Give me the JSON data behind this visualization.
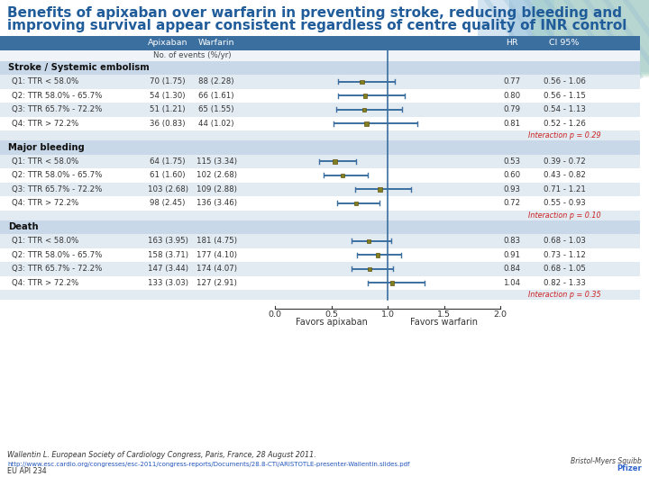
{
  "title_line1": "Benefits of apixaban over warfarin in preventing stroke, reducing bleeding and",
  "title_line2": "improving survival appear consistent regardless of centre quality of INR control",
  "title_color": "#1F5C99",
  "title_fontsize": 11,
  "bg_color": "#FFFFFF",
  "table_header_bg": "#3B6FA0",
  "table_header_color": "#FFFFFF",
  "sub_header": "No. of events (%/yr)",
  "sections": [
    {
      "name": "Stroke / Systemic embolism",
      "rows": [
        {
          "label": "Q1: TTR < 58.0%",
          "apix": "70 (1.75)",
          "warf": "88 (2.28)",
          "hr": 0.77,
          "ci_lo": 0.56,
          "ci_hi": 1.06,
          "hr_txt": "0.77",
          "ci_txt": "0.56 - 1.06"
        },
        {
          "label": "Q2: TTR 58.0% - 65.7%",
          "apix": "54 (1.30)",
          "warf": "66 (1.61)",
          "hr": 0.8,
          "ci_lo": 0.56,
          "ci_hi": 1.15,
          "hr_txt": "0.80",
          "ci_txt": "0.56 - 1.15"
        },
        {
          "label": "Q3: TTR 65.7% - 72.2%",
          "apix": "51 (1.21)",
          "warf": "65 (1.55)",
          "hr": 0.79,
          "ci_lo": 0.54,
          "ci_hi": 1.13,
          "hr_txt": "0.79",
          "ci_txt": "0.54 - 1.13"
        },
        {
          "label": "Q4: TTR > 72.2%",
          "apix": "36 (0.83)",
          "warf": "44 (1.02)",
          "hr": 0.81,
          "ci_lo": 0.52,
          "ci_hi": 1.26,
          "hr_txt": "0.81",
          "ci_txt": "0.52 - 1.26"
        }
      ],
      "interaction": "Interaction p = 0.29"
    },
    {
      "name": "Major bleeding",
      "rows": [
        {
          "label": "Q1: TTR < 58.0%",
          "apix": "64 (1.75)",
          "warf": "115 (3.34)",
          "hr": 0.53,
          "ci_lo": 0.39,
          "ci_hi": 0.72,
          "hr_txt": "0.53",
          "ci_txt": "0.39 - 0.72"
        },
        {
          "label": "Q2: TTR 58.0% - 65.7%",
          "apix": "61 (1.60)",
          "warf": "102 (2.68)",
          "hr": 0.6,
          "ci_lo": 0.43,
          "ci_hi": 0.82,
          "hr_txt": "0.60",
          "ci_txt": "0.43 - 0.82"
        },
        {
          "label": "Q3: TTR 65.7% - 72.2%",
          "apix": "103 (2.68)",
          "warf": "109 (2.88)",
          "hr": 0.93,
          "ci_lo": 0.71,
          "ci_hi": 1.21,
          "hr_txt": "0.93",
          "ci_txt": "0.71 - 1.21"
        },
        {
          "label": "Q4: TTR > 72.2%",
          "apix": "98 (2.45)",
          "warf": "136 (3.46)",
          "hr": 0.72,
          "ci_lo": 0.55,
          "ci_hi": 0.93,
          "hr_txt": "0.72",
          "ci_txt": "0.55 - 0.93"
        }
      ],
      "interaction": "Interaction p = 0.10"
    },
    {
      "name": "Death",
      "rows": [
        {
          "label": "Q1: TTR < 58.0%",
          "apix": "163 (3.95)",
          "warf": "181 (4.75)",
          "hr": 0.83,
          "ci_lo": 0.68,
          "ci_hi": 1.03,
          "hr_txt": "0.83",
          "ci_txt": "0.68 - 1.03"
        },
        {
          "label": "Q2: TTR 58.0% - 65.7%",
          "apix": "158 (3.71)",
          "warf": "177 (4.10)",
          "hr": 0.91,
          "ci_lo": 0.73,
          "ci_hi": 1.12,
          "hr_txt": "0.91",
          "ci_txt": "0.73 - 1.12"
        },
        {
          "label": "Q3: TTR 65.7% - 72.2%",
          "apix": "147 (3.44)",
          "warf": "174 (4.07)",
          "hr": 0.84,
          "ci_lo": 0.68,
          "ci_hi": 1.05,
          "hr_txt": "0.84",
          "ci_txt": "0.68 - 1.05"
        },
        {
          "label": "Q4: TTR > 72.2%",
          "apix": "133 (3.03)",
          "warf": "127 (2.91)",
          "hr": 1.04,
          "ci_lo": 0.82,
          "ci_hi": 1.33,
          "hr_txt": "1.04",
          "ci_txt": "0.82 - 1.33"
        }
      ],
      "interaction": "Interaction p = 0.35"
    }
  ],
  "xmin": 0.0,
  "xmax": 2.0,
  "xticks": [
    0.0,
    0.5,
    1.0,
    1.5,
    2.0
  ],
  "xlabel_left": "Favors apixaban",
  "xlabel_right": "Favors warfarin",
  "vline_x": 1.0,
  "square_color": "#808020",
  "line_color": "#3B6FA0",
  "row_odd_bg": "#FFFFFF",
  "row_even_bg": "#E2EAF2",
  "section_bg": "#C8D8E8",
  "interaction_color": "#CC2222",
  "footer1": "Wallentin L. European Society of Cardiology Congress, Paris, France, 28 August 2011.",
  "footer2": "http://www.esc.cardio.org/congresses/esc-2011/congress-reports/Documents/28.8-CTI/ARISTOTLE-presenter-Wallentin.slides.pdf",
  "footer3": "EU API 234"
}
